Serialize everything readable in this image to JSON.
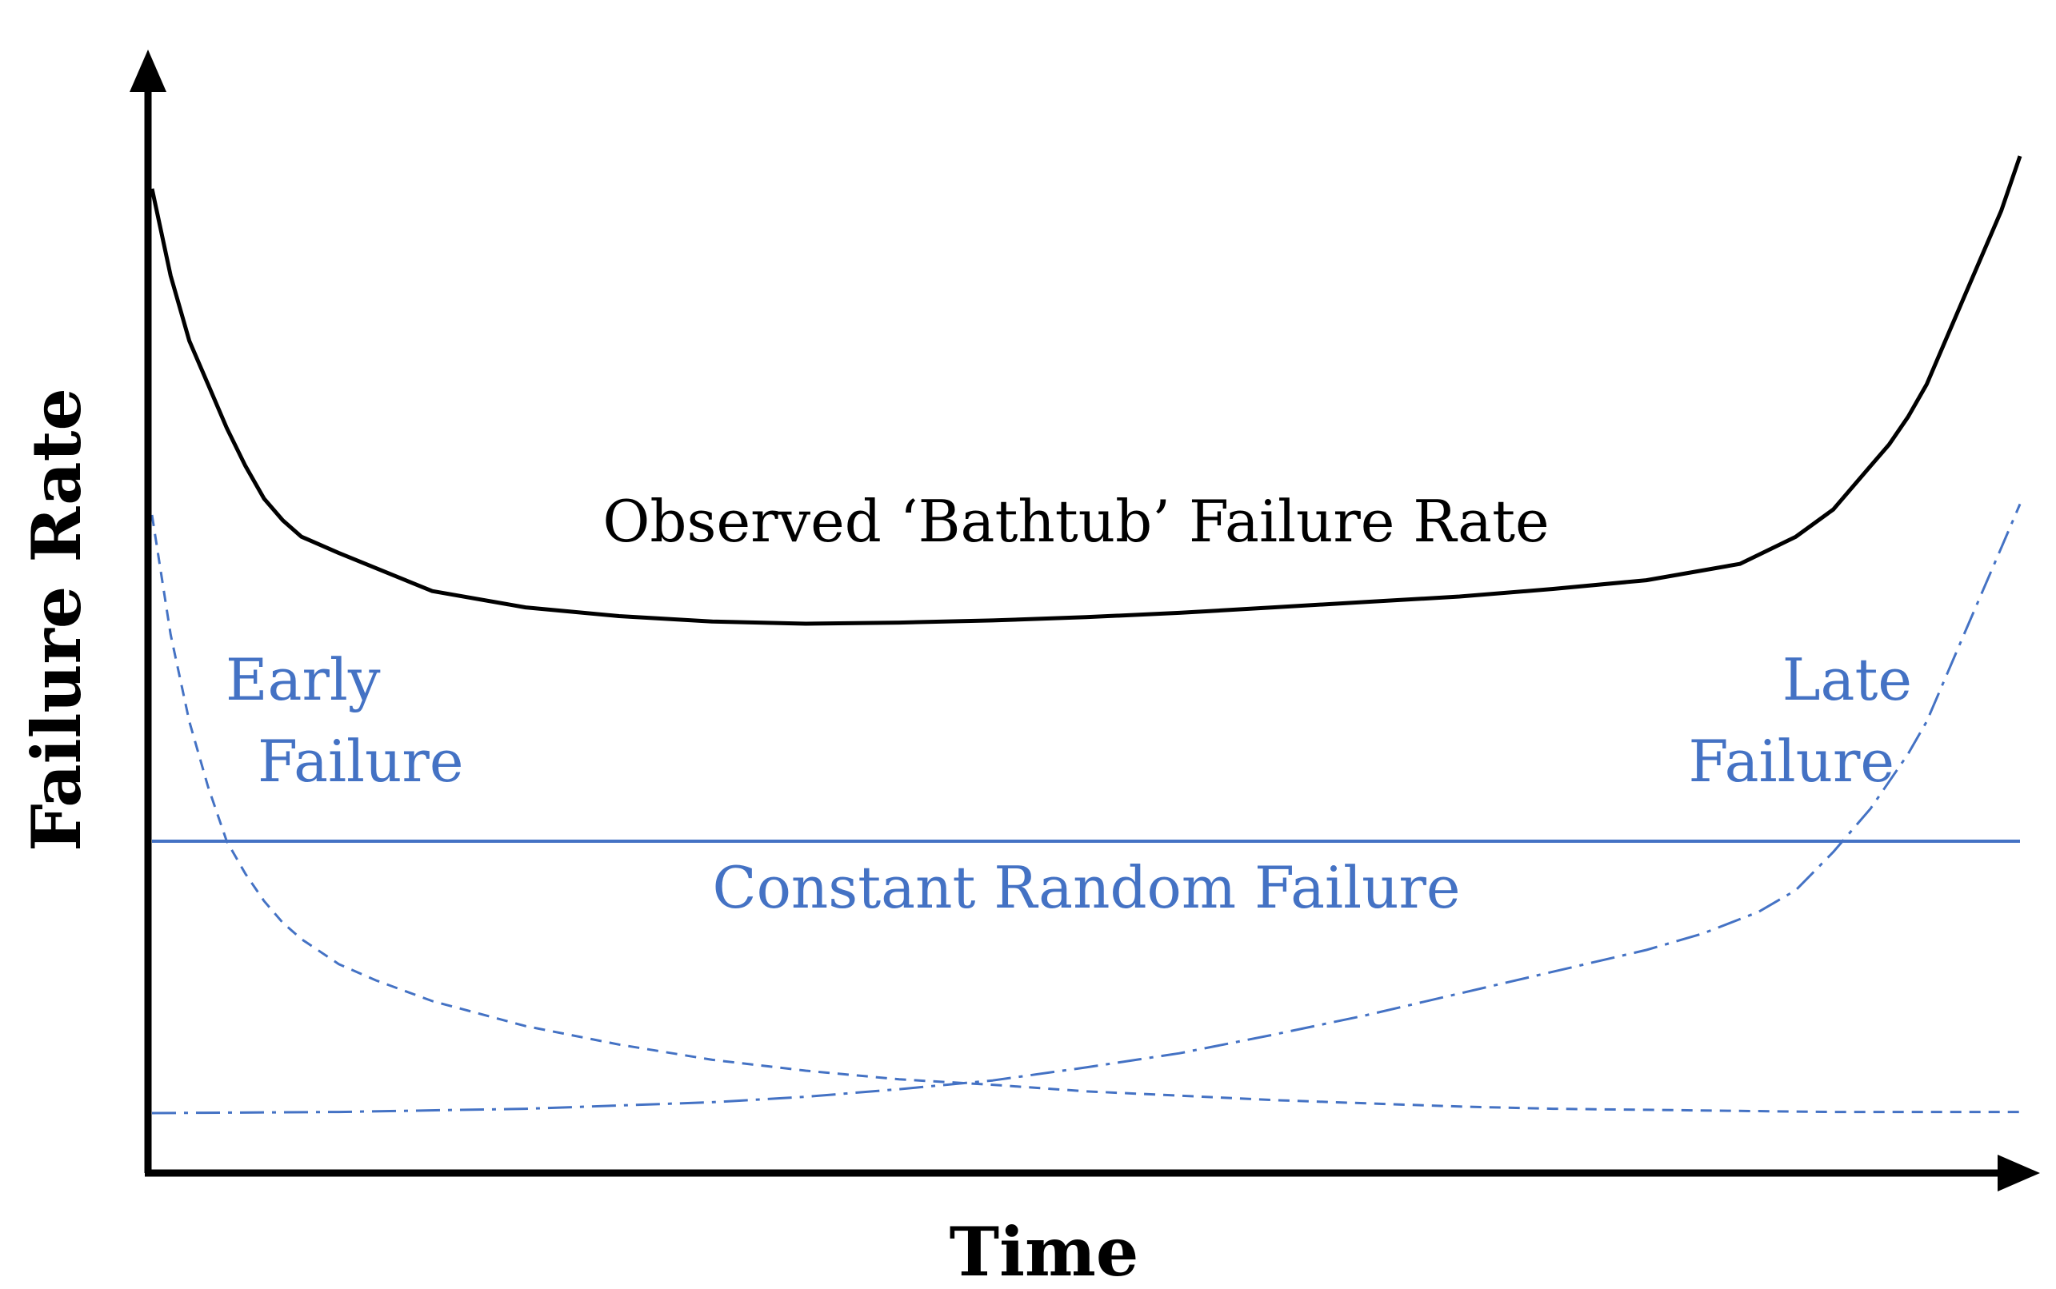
{
  "chart_data": {
    "type": "line",
    "xlabel": "Time",
    "ylabel": "Failure Rate",
    "xlim": [
      0,
      100
    ],
    "ylim": [
      0,
      100
    ],
    "grid": false,
    "axis_ticks": false,
    "colors": {
      "observed": "#000000",
      "components": "#4472C4",
      "axis": "#000000"
    },
    "series": [
      {
        "name": "Observed ‘Bathtub’ Failure Rate",
        "style": "solid",
        "x": [
          0,
          1,
          2,
          3,
          4,
          5,
          6,
          7,
          8,
          10,
          15,
          20,
          25,
          30,
          35,
          40,
          45,
          50,
          55,
          60,
          65,
          70,
          75,
          80,
          85,
          88,
          90,
          91,
          92,
          93,
          94,
          95,
          96,
          97,
          98,
          99,
          100
        ],
        "y": [
          90,
          82,
          76,
          72,
          68,
          64.5,
          61.5,
          59.5,
          58,
          56.5,
          53,
          51.5,
          50.7,
          50.2,
          50.0,
          50.1,
          50.3,
          50.6,
          51.0,
          51.5,
          52.0,
          52.5,
          53.2,
          54.0,
          55.5,
          58,
          60.5,
          62.5,
          64.5,
          66.5,
          69,
          72,
          76,
          80,
          84,
          88,
          93
        ]
      },
      {
        "name": "Early Failure",
        "style": "dashed",
        "x": [
          0,
          1,
          2,
          3,
          4,
          5,
          6,
          7,
          8,
          10,
          12,
          15,
          20,
          25,
          30,
          35,
          40,
          45,
          50,
          55,
          60,
          65,
          70,
          75,
          80,
          85,
          90,
          95,
          100
        ],
        "y": [
          60,
          49,
          41,
          35,
          30,
          27,
          24.5,
          22.5,
          21,
          18.7,
          17.2,
          15.3,
          13,
          11.3,
          9.9,
          8.9,
          8.1,
          7.6,
          7.0,
          6.6,
          6.2,
          5.9,
          5.6,
          5.4,
          5.3,
          5.2,
          5.1,
          5.1,
          5.1
        ]
      },
      {
        "name": "Constant Random Failure",
        "style": "solid",
        "x": [
          0,
          100
        ],
        "y": [
          30,
          30
        ]
      },
      {
        "name": "Late Failure",
        "style": "dash-dot",
        "x": [
          0,
          10,
          20,
          30,
          35,
          40,
          45,
          50,
          55,
          60,
          65,
          70,
          75,
          80,
          83,
          86,
          88,
          90,
          92,
          94,
          95,
          96,
          97,
          98,
          99,
          100
        ],
        "y": [
          5,
          5.1,
          5.4,
          6.0,
          6.5,
          7.2,
          8.0,
          9.2,
          10.5,
          12.2,
          14.0,
          16.0,
          18.0,
          20.0,
          21.5,
          23.5,
          25.5,
          29,
          33,
          38,
          41,
          45,
          49,
          53,
          57,
          61
        ]
      }
    ],
    "annotations": {
      "observed_label": "Observed ‘Bathtub’ Failure Rate",
      "early_line1": "Early",
      "early_line2": "Failure",
      "late_line1": "Late",
      "late_line2": "Failure",
      "constant_label": "Constant Random Failure"
    }
  }
}
